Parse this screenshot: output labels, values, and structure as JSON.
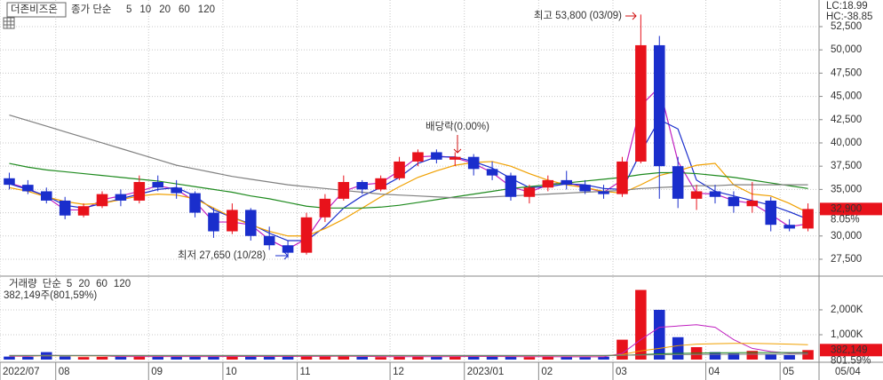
{
  "chart_data": [
    {
      "type": "candlestick",
      "name": "더존비즈온",
      "legend_label": "종가 단순",
      "up_color": "#e8121b",
      "down_color": "#1a2ecc",
      "open": [
        36200,
        35500,
        34800,
        33800,
        32200,
        33200,
        34500,
        33800,
        35800,
        35200,
        34600,
        32500,
        30500,
        32800,
        30000,
        29000,
        28200,
        32000,
        34000,
        35800,
        35000,
        36200,
        38000,
        39000,
        38200,
        38500,
        37200,
        36500,
        34200,
        35200,
        36000,
        35500,
        34800,
        34500,
        38000,
        50500,
        37500,
        34000,
        34800,
        34200,
        33200,
        33800,
        31200,
        30800
      ],
      "high": [
        36800,
        36000,
        35200,
        34200,
        33500,
        34800,
        35000,
        36500,
        36500,
        36000,
        34800,
        33000,
        33500,
        33000,
        31000,
        29500,
        32500,
        34500,
        36500,
        36000,
        36500,
        38500,
        39300,
        39300,
        39000,
        38800,
        38000,
        36800,
        35500,
        36500,
        37000,
        36000,
        35500,
        38500,
        53800,
        51500,
        38500,
        35500,
        35500,
        34800,
        35800,
        34200,
        31800,
        33500
      ],
      "low": [
        35000,
        34500,
        33500,
        31800,
        32000,
        33000,
        33200,
        33500,
        34800,
        34000,
        32000,
        29800,
        30200,
        29500,
        28500,
        27650,
        28000,
        31500,
        33800,
        34500,
        34800,
        36000,
        37500,
        37800,
        37500,
        36500,
        36000,
        33800,
        33500,
        34800,
        35000,
        34500,
        34000,
        34200,
        37800,
        34000,
        33000,
        32800,
        33500,
        32500,
        32500,
        30500,
        30500,
        30500
      ],
      "close": [
        35500,
        34800,
        33800,
        32200,
        33200,
        34500,
        33800,
        35800,
        35200,
        34600,
        32500,
        30500,
        32800,
        30000,
        29000,
        28200,
        32000,
        34000,
        35800,
        35000,
        36200,
        38000,
        39000,
        38200,
        38500,
        37200,
        36500,
        34200,
        35200,
        36000,
        35500,
        34800,
        34500,
        38000,
        50500,
        37500,
        34000,
        34800,
        34200,
        33200,
        33800,
        31200,
        30800,
        32900
      ],
      "series": [
        {
          "name": "5",
          "color": "#c020c0",
          "values": [
            35700,
            35100,
            34200,
            32800,
            32800,
            33900,
            34300,
            34800,
            35400,
            35000,
            33700,
            31500,
            31500,
            31200,
            29600,
            28600,
            29700,
            32600,
            34800,
            35500,
            35700,
            37000,
            38500,
            38600,
            38400,
            37800,
            36800,
            35300,
            34700,
            35500,
            35800,
            35200,
            34700,
            36000,
            44000,
            46000,
            38000,
            34600,
            34500,
            33800,
            33500,
            32300,
            31000,
            31300
          ]
        },
        {
          "name": "10",
          "color": "#1a2ecc",
          "values": [
            35600,
            35000,
            34300,
            33300,
            33000,
            33500,
            34000,
            34500,
            35000,
            35200,
            34300,
            32800,
            32000,
            31300,
            30300,
            29500,
            29500,
            31000,
            33000,
            34300,
            35200,
            36300,
            37800,
            38500,
            38500,
            38000,
            37300,
            36200,
            35200,
            35300,
            35600,
            35500,
            35100,
            35000,
            39000,
            42500,
            41500,
            36000,
            34800,
            34300,
            33800,
            33300,
            32600,
            31800
          ]
        },
        {
          "name": "20",
          "color": "#f0a000",
          "values": [
            35200,
            34800,
            34200,
            33700,
            33400,
            33500,
            33900,
            34300,
            34500,
            34400,
            34000,
            33000,
            32000,
            31200,
            30500,
            30000,
            30000,
            30800,
            31800,
            33000,
            34200,
            35300,
            36300,
            37000,
            37600,
            37900,
            38000,
            37500,
            36700,
            36000,
            35500,
            35200,
            34800,
            34600,
            35500,
            36500,
            37000,
            37600,
            37800,
            35500,
            34500,
            34300,
            33500,
            32500
          ]
        },
        {
          "name": "60",
          "color": "#1e8a1e",
          "values": [
            37800,
            37400,
            37100,
            36900,
            36700,
            36500,
            36300,
            36100,
            35900,
            35600,
            35300,
            35000,
            34700,
            34300,
            34000,
            33600,
            33200,
            33000,
            33000,
            33000,
            33100,
            33300,
            33600,
            33900,
            34200,
            34500,
            34800,
            35100,
            35300,
            35500,
            35700,
            35900,
            36100,
            36300,
            36600,
            36800,
            36800,
            36700,
            36500,
            36300,
            36000,
            35700,
            35400,
            35100
          ]
        },
        {
          "name": "120",
          "color": "#808080",
          "values": [
            43000,
            42400,
            41800,
            41200,
            40600,
            40000,
            39400,
            38800,
            38200,
            37600,
            37200,
            36800,
            36400,
            36100,
            35800,
            35500,
            35300,
            35100,
            34900,
            34700,
            34500,
            34400,
            34300,
            34200,
            34100,
            34100,
            34200,
            34300,
            34400,
            34500,
            34600,
            34700,
            34800,
            34900,
            35100,
            35200,
            35300,
            35400,
            35400,
            35500,
            35500,
            35500,
            35500,
            35500
          ]
        }
      ],
      "ylim": [
        25780,
        55360
      ],
      "yticks": [
        {
          "value": 27500,
          "label": "27,500"
        },
        {
          "value": 30000,
          "label": "30,000"
        },
        {
          "value": 32500,
          "label": "32,500"
        },
        {
          "value": 35000,
          "label": "35,000"
        },
        {
          "value": 37500,
          "label": "37,500"
        },
        {
          "value": 40000,
          "label": "40,000"
        },
        {
          "value": 42500,
          "label": "42,500"
        },
        {
          "value": 45000,
          "label": "45,000"
        },
        {
          "value": 47500,
          "label": "47,500"
        },
        {
          "value": 50000,
          "label": "50,000"
        },
        {
          "value": 52500,
          "label": "52,500"
        }
      ],
      "grid": true,
      "high_label": "최고 53,800 (03/09)",
      "low_label": "최저 27,650 (10/28)",
      "event_label": "배당락(0.00%)",
      "last_label": "32,900",
      "change": "8.05%",
      "lc": "LC:18.99",
      "hc": "HC:-38.85"
    },
    {
      "type": "bar",
      "legend_label": "거래량",
      "ma_label": "단순",
      "summary": "382,149주(801,59%)",
      "categories": [
        "2022/07",
        null,
        null,
        "08",
        null,
        null,
        null,
        null,
        "09",
        null,
        null,
        null,
        "10",
        null,
        null,
        null,
        "11",
        null,
        null,
        null,
        null,
        "12",
        null,
        null,
        null,
        "2023/01",
        null,
        null,
        null,
        "02",
        null,
        null,
        null,
        "03",
        null,
        null,
        null,
        null,
        "04",
        null,
        null,
        null,
        "05",
        null
      ],
      "values": [
        120,
        110,
        300,
        130,
        100,
        110,
        120,
        130,
        120,
        110,
        120,
        130,
        140,
        120,
        110,
        130,
        150,
        140,
        130,
        110,
        100,
        120,
        130,
        120,
        110,
        140,
        120,
        110,
        100,
        120,
        110,
        100,
        110,
        800,
        2800,
        2000,
        900,
        500,
        300,
        250,
        350,
        200,
        180,
        382.149
      ],
      "up_color": "#e8121b",
      "down_color": "#1a2ecc",
      "series": [
        {
          "name": "5",
          "color": "#c020c0",
          "values": [
            140,
            130,
            170,
            160,
            150,
            150,
            120,
            120,
            120,
            120,
            120,
            120,
            125,
            125,
            125,
            125,
            130,
            130,
            135,
            130,
            120,
            115,
            115,
            115,
            120,
            125,
            125,
            120,
            115,
            115,
            110,
            110,
            110,
            250,
            800,
            1300,
            1350,
            1400,
            1300,
            800,
            450,
            320,
            260,
            270
          ]
        },
        {
          "name": "20",
          "color": "#f0a000",
          "values": [
            150,
            150,
            150,
            150,
            150,
            150,
            150,
            150,
            150,
            150,
            150,
            150,
            150,
            150,
            150,
            150,
            150,
            150,
            150,
            150,
            150,
            150,
            150,
            150,
            150,
            150,
            150,
            150,
            150,
            150,
            150,
            150,
            150,
            200,
            350,
            450,
            560,
            620,
            640,
            650,
            650,
            640,
            620,
            600
          ]
        },
        {
          "name": "60",
          "color": "#1e8a1e",
          "values": [
            160,
            160,
            160,
            160,
            160,
            160,
            160,
            160,
            160,
            160,
            160,
            160,
            160,
            160,
            160,
            160,
            160,
            160,
            160,
            160,
            160,
            160,
            160,
            160,
            160,
            160,
            160,
            160,
            160,
            160,
            160,
            160,
            160,
            170,
            200,
            230,
            250,
            260,
            270,
            275,
            280,
            280,
            280,
            280
          ]
        },
        {
          "name": "120",
          "color": "#808080",
          "values": [
            170,
            170,
            170,
            170,
            170,
            170,
            170,
            170,
            170,
            170,
            170,
            170,
            170,
            170,
            170,
            170,
            170,
            170,
            170,
            170,
            170,
            170,
            170,
            170,
            170,
            170,
            170,
            170,
            170,
            170,
            170,
            170,
            170,
            175,
            185,
            195,
            200,
            205,
            210,
            212,
            214,
            216,
            218,
            220
          ]
        }
      ],
      "ylim": [
        0,
        3320
      ],
      "yticks": [
        {
          "value": 1000,
          "label": "1,000K"
        },
        {
          "value": 2000,
          "label": "2,000K"
        }
      ],
      "last_label": "382,149",
      "change": "801.59%",
      "last_date": "05/04"
    }
  ]
}
